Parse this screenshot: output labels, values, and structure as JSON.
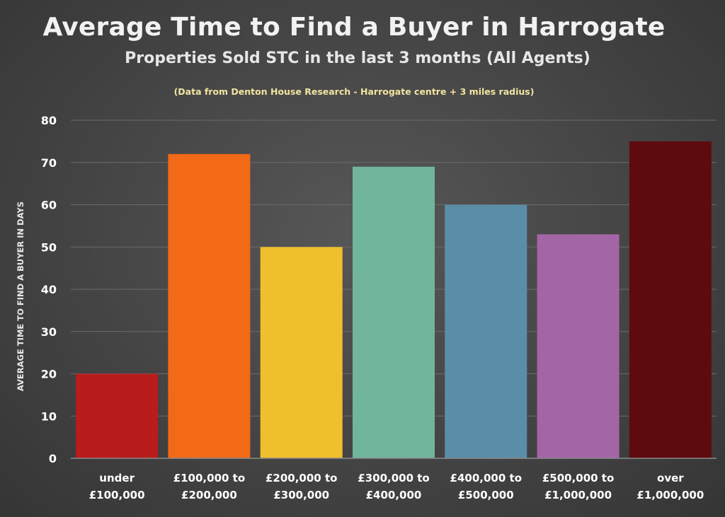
{
  "chart_data": {
    "type": "bar",
    "title": "Average Time to Find a Buyer in Harrogate",
    "subtitle": "Properties Sold STC in the last 3 months (All Agents)",
    "annotation": "(Data from Denton House Research - Harrogate centre + 3 miles radius)",
    "ylabel": "AVERAGE TIME TO FIND A BUYER IN DAYS",
    "xlabel": "",
    "ylim": [
      0,
      80
    ],
    "yticks": [
      0,
      10,
      20,
      30,
      40,
      50,
      60,
      70,
      80
    ],
    "grid": true,
    "categories": [
      [
        "under",
        "£100,000"
      ],
      [
        "£100,000 to",
        "£200,000"
      ],
      [
        "£200,000 to",
        "£300,000"
      ],
      [
        "£300,000 to",
        "£400,000"
      ],
      [
        "£400,000 to",
        "£500,000"
      ],
      [
        "£500,000 to",
        "£1,000,000"
      ],
      [
        "over",
        "£1,000,000"
      ]
    ],
    "values": [
      20,
      72,
      50,
      69,
      60,
      53,
      75
    ],
    "colors": [
      "#b91c1c",
      "#f26a16",
      "#efbf2c",
      "#71b59a",
      "#5a8ea8",
      "#a465a6",
      "#5e0b0d"
    ]
  }
}
